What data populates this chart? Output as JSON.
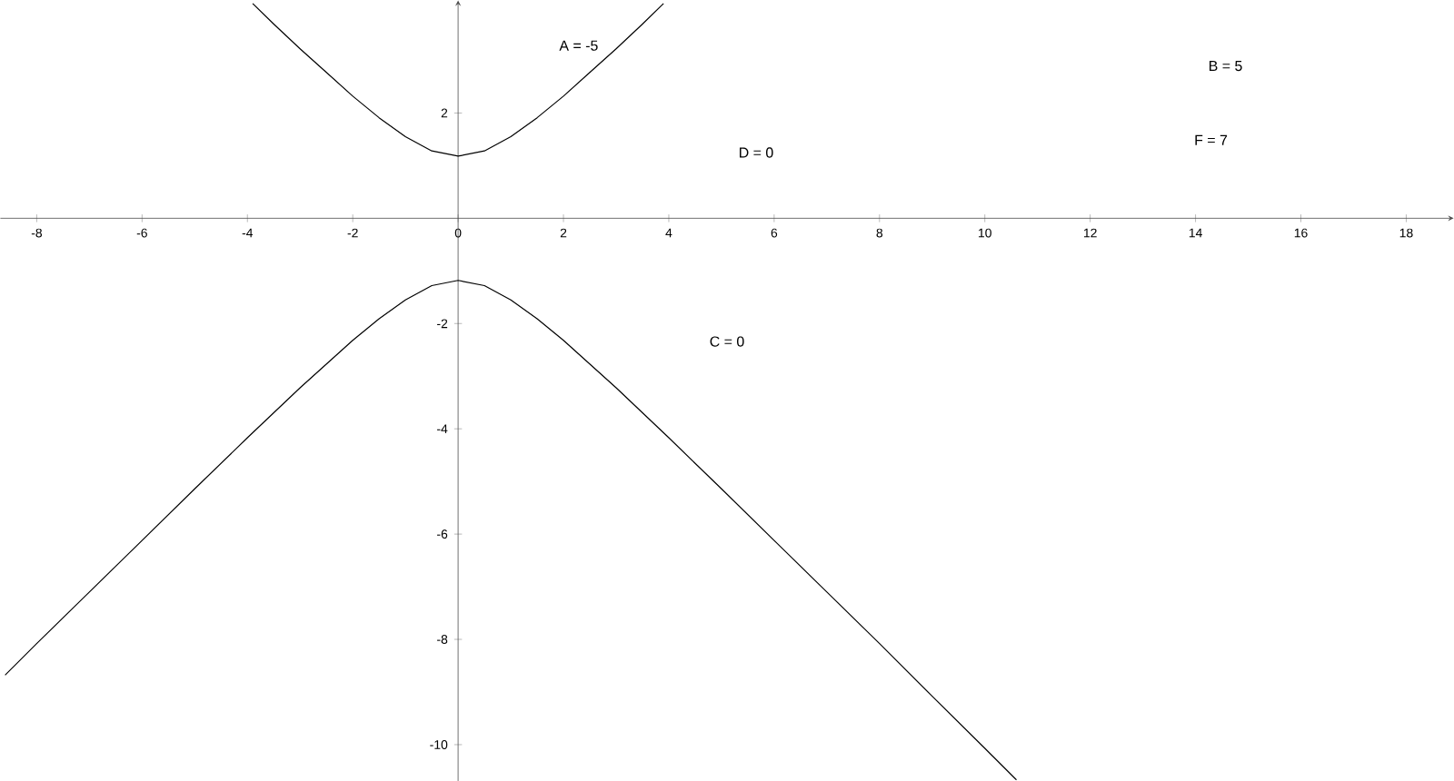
{
  "chart_data": {
    "type": "line",
    "xlim": [
      -8.69,
      18.9
    ],
    "ylim": [
      -10.69,
      4.14
    ],
    "xticks": [
      -8,
      -6,
      -4,
      -2,
      0,
      2,
      4,
      6,
      8,
      10,
      12,
      14,
      16,
      18
    ],
    "yticks": [
      -10,
      -8,
      -6,
      -4,
      -2,
      2
    ],
    "grid": false,
    "marker": "none",
    "line_style": "solid",
    "series": [
      {
        "color": "#000000",
        "x": [
          -3.9,
          -3.5,
          -3,
          -2.5,
          -2,
          -1.5,
          -1,
          -0.5,
          0,
          0.5,
          1,
          1.5,
          2,
          2.5,
          3,
          3.5,
          3.9
        ],
        "values": [
          4.08,
          3.69,
          3.22,
          2.77,
          2.32,
          1.91,
          1.55,
          1.28,
          1.18,
          1.28,
          1.55,
          1.91,
          2.32,
          2.77,
          3.22,
          3.69,
          4.08
        ]
      },
      {
        "color": "#000000",
        "x": [
          -8.6,
          -8,
          -7,
          -6,
          -5,
          -4,
          -3,
          -2,
          -1.5,
          -1,
          -0.5,
          0,
          0.5,
          1,
          1.5,
          2,
          3,
          4,
          5,
          6,
          7,
          8,
          9,
          10,
          10.6
        ],
        "values": [
          -8.68,
          -8.08,
          -7.1,
          -6.12,
          -5.14,
          -4.17,
          -3.22,
          -2.32,
          -1.91,
          -1.55,
          -1.28,
          -1.18,
          -1.28,
          -1.55,
          -1.91,
          -2.32,
          -3.22,
          -4.17,
          -5.14,
          -6.12,
          -7.1,
          -8.08,
          -9.08,
          -10.07,
          -10.67
        ]
      }
    ],
    "annotations": [
      "A = -5",
      "B = 5",
      "D = 0",
      "F = 7",
      "C = 0"
    ]
  }
}
